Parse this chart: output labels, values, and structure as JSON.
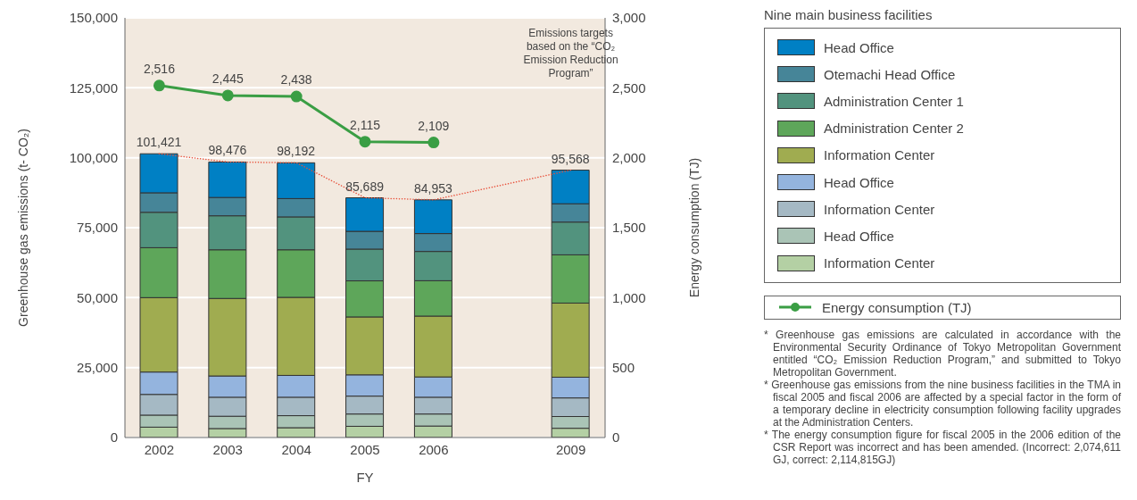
{
  "chart_data": {
    "type": "bar",
    "stacked": true,
    "legend": "right",
    "legend_title": "Nine main business facilities",
    "grid": "y",
    "xlabel": "FY",
    "ylabel": "Greenhouse gas emissions (t- CO₂)",
    "y2label": "Energy consumption (TJ)",
    "categories": [
      "2002",
      "2003",
      "2004",
      "2005",
      "2006",
      null,
      "2009"
    ],
    "ylim": [
      0,
      150000
    ],
    "yticks": [
      0,
      {
        "value": 25000,
        "label": "25,000"
      },
      {
        "value": 50000,
        "label": "50,000"
      },
      {
        "value": 75000,
        "label": "75,000"
      },
      {
        "value": 100000,
        "label": "100,000"
      },
      {
        "value": 125000,
        "label": "125,000"
      },
      {
        "value": 150000,
        "label": "150,000"
      }
    ],
    "y2lim": [
      0,
      3000
    ],
    "y2ticks": [
      0,
      500,
      {
        "value": 1000,
        "label": "1,000"
      },
      {
        "value": 1500,
        "label": "1,500"
      },
      {
        "value": 2000,
        "label": "2,000"
      },
      {
        "value": 2500,
        "label": "2,500"
      },
      {
        "value": 3000,
        "label": "3,000"
      }
    ],
    "totals": [
      "101,421",
      "98,476",
      "98,192",
      "85,689",
      "84,953",
      null,
      "95,568"
    ],
    "series": [
      {
        "name": "Information Center",
        "color": "#b4d0a4",
        "values": [
          3700,
          3200,
          3500,
          4000,
          4100,
          null,
          3300
        ]
      },
      {
        "name": "Head Office",
        "color": "#aac4b6",
        "values": [
          4300,
          4400,
          4300,
          4400,
          4300,
          null,
          4200
        ]
      },
      {
        "name": "Information Center",
        "color": "#a5b9c4",
        "values": [
          7400,
          6800,
          6600,
          6400,
          6000,
          null,
          6650
        ]
      },
      {
        "name": "Head Office",
        "color": "#94b4de",
        "values": [
          8000,
          7600,
          7800,
          7600,
          7250,
          null,
          7400
        ]
      },
      {
        "name": "Information Center",
        "color": "#a0ac50",
        "values": [
          26600,
          27700,
          27900,
          20700,
          21750,
          null,
          26500
        ]
      },
      {
        "name": "Administration Center 2",
        "color": "#5ea65a",
        "values": [
          17850,
          17400,
          17000,
          12900,
          12650,
          null,
          17250
        ]
      },
      {
        "name": "Administration Center 1",
        "color": "#52937e",
        "values": [
          12650,
          12150,
          11750,
          11350,
          10450,
          null,
          11700
        ]
      },
      {
        "name": "Otemachi Head Office",
        "color": "#468598",
        "values": [
          6970,
          6550,
          6550,
          6350,
          6400,
          null,
          6550
        ]
      },
      {
        "name": "Head Office",
        "color": "#0080c4",
        "values": [
          13951,
          12676,
          12792,
          11989,
          12053,
          null,
          12018
        ]
      },
      {
        "type": "line",
        "color": "#e8503a",
        "line_style": "dotted",
        "marker": "none",
        "values": [
          101421,
          98476,
          98192,
          85689,
          84953,
          null,
          95568
        ]
      },
      {
        "type": "line",
        "name": "Energy consumption (TJ)",
        "axis": "y2",
        "color": "#3a9e44",
        "line_style": "solid",
        "marker": "circle",
        "values": [
          2516,
          2445,
          2438,
          2115,
          2109,
          null,
          null
        ],
        "value_labels": [
          "2,516",
          "2,445",
          "2,438",
          "2,115",
          "2,109",
          null,
          null
        ]
      }
    ],
    "annotations": [
      "Emissions targets based on the “CO₂ Emission Reduction Program”",
      "* Greenhouse gas emissions are calculated in accordance with the Environmental Security Ordinance of Tokyo Metropolitan Government entitled “CO₂ Emission Reduction Program,” and submitted to Tokyo Metropolitan Government.",
      "* Greenhouse gas emissions from the nine business facilities in the TMA in fiscal 2005 and fiscal 2006 are affected by a special factor in the form of a temporary decline in electricity consumption following facility upgrades at the Administration Centers.",
      "* The energy consumption figure for fiscal 2005 in the 2006 edition of the CSR Report was incorrect and has been amended. (Incorrect: 2,074,611 GJ, correct: 2,114,815GJ)"
    ]
  }
}
